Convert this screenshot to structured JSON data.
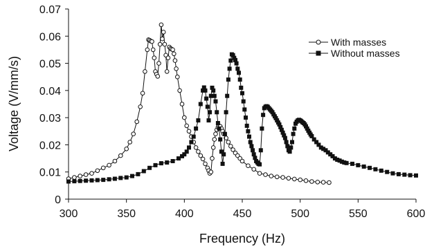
{
  "chart_data": {
    "type": "line",
    "title": "",
    "xlabel": "Frequency (Hz)",
    "ylabel": "Voltage (V/mm/s)",
    "xlim": [
      300,
      600
    ],
    "ylim": [
      0,
      0.07
    ],
    "x_ticks": [
      "300",
      "350",
      "400",
      "450",
      "500",
      "550",
      "600"
    ],
    "y_ticks": [
      "0",
      "0.01",
      "0.02",
      "0.03",
      "0.04",
      "0.05",
      "0.06",
      "0.07"
    ],
    "grid": false,
    "legend_position": "top-right",
    "series": [
      {
        "name": "With masses",
        "marker": "open-circle",
        "color": "#111111",
        "x": [
          300,
          305,
          310,
          315,
          320,
          325,
          330,
          335,
          340,
          345,
          350,
          353,
          356,
          359,
          362,
          364,
          366,
          368,
          369,
          370,
          371,
          372,
          373,
          374,
          375,
          376,
          377,
          378,
          379,
          380,
          381,
          382,
          383,
          384,
          385,
          386,
          387,
          388,
          389,
          390,
          391,
          392,
          393,
          394,
          396,
          398,
          400,
          402,
          404,
          406,
          408,
          410,
          412,
          414,
          416,
          418,
          420,
          421,
          422,
          423,
          424,
          425,
          426,
          427,
          428,
          429,
          430,
          431,
          432,
          433,
          434,
          436,
          438,
          440,
          442,
          444,
          446,
          448,
          450,
          455,
          460,
          465,
          470,
          475,
          480,
          485,
          490,
          495,
          500,
          505,
          510,
          515,
          520,
          525
        ],
        "y": [
          0.0075,
          0.008,
          0.0085,
          0.009,
          0.0095,
          0.0105,
          0.0115,
          0.0125,
          0.014,
          0.016,
          0.0185,
          0.021,
          0.024,
          0.0285,
          0.034,
          0.039,
          0.047,
          0.055,
          0.0587,
          0.0585,
          0.0582,
          0.058,
          0.055,
          0.052,
          0.047,
          0.046,
          0.0452,
          0.05,
          0.057,
          0.0642,
          0.059,
          0.0615,
          0.057,
          0.053,
          0.047,
          0.052,
          0.056,
          0.0555,
          0.0552,
          0.055,
          0.0535,
          0.051,
          0.048,
          0.045,
          0.04,
          0.035,
          0.03,
          0.027,
          0.025,
          0.023,
          0.021,
          0.019,
          0.0175,
          0.016,
          0.0148,
          0.013,
          0.0115,
          0.0105,
          0.0095,
          0.01,
          0.015,
          0.019,
          0.022,
          0.024,
          0.0255,
          0.0265,
          0.027,
          0.0268,
          0.026,
          0.025,
          0.024,
          0.0225,
          0.021,
          0.0195,
          0.0182,
          0.017,
          0.016,
          0.015,
          0.014,
          0.0123,
          0.011,
          0.0095,
          0.009,
          0.0085,
          0.0082,
          0.008,
          0.0077,
          0.0074,
          0.0071,
          0.0068,
          0.0065,
          0.0063,
          0.0062,
          0.0061
        ]
      },
      {
        "name": "Without masses",
        "marker": "filled-square",
        "color": "#111111",
        "x": [
          300,
          305,
          310,
          315,
          320,
          325,
          330,
          335,
          340,
          345,
          350,
          355,
          360,
          365,
          370,
          375,
          380,
          385,
          390,
          395,
          398,
          400,
          402,
          404,
          406,
          408,
          410,
          412,
          414,
          416,
          417,
          418,
          419,
          420,
          421,
          422,
          423,
          424,
          425,
          426,
          427,
          428,
          429,
          430,
          431,
          432,
          433,
          434,
          435,
          436,
          437,
          438,
          439,
          440,
          441,
          442,
          443,
          444,
          445,
          446,
          447,
          448,
          449,
          450,
          451,
          452,
          453,
          454,
          455,
          456,
          457,
          458,
          459,
          460,
          461,
          462,
          463,
          464,
          465,
          466,
          467,
          468,
          469,
          470,
          471,
          472,
          473,
          474,
          475,
          476,
          477,
          478,
          479,
          480,
          481,
          482,
          483,
          484,
          485,
          486,
          487,
          488,
          489,
          490,
          491,
          492,
          493,
          494,
          495,
          496,
          497,
          498,
          499,
          500,
          501,
          502,
          503,
          504,
          505,
          506,
          507,
          508,
          509,
          510,
          512,
          514,
          516,
          518,
          520,
          522,
          524,
          526,
          528,
          530,
          532,
          534,
          536,
          538,
          540,
          545,
          550,
          555,
          560,
          565,
          570,
          575,
          580,
          585,
          590,
          595,
          600
        ],
        "y": [
          0.0065,
          0.0066,
          0.0067,
          0.0068,
          0.0069,
          0.007,
          0.0071,
          0.0073,
          0.0075,
          0.0078,
          0.008,
          0.0085,
          0.0092,
          0.0103,
          0.0115,
          0.0125,
          0.0132,
          0.0135,
          0.014,
          0.015,
          0.0158,
          0.0165,
          0.0175,
          0.019,
          0.021,
          0.023,
          0.026,
          0.029,
          0.035,
          0.04,
          0.0411,
          0.04,
          0.037,
          0.034,
          0.029,
          0.032,
          0.038,
          0.041,
          0.04,
          0.038,
          0.036,
          0.032,
          0.028,
          0.026,
          0.022,
          0.0175,
          0.013,
          0.0165,
          0.024,
          0.032,
          0.038,
          0.044,
          0.048,
          0.051,
          0.0533,
          0.053,
          0.052,
          0.0512,
          0.05,
          0.048,
          0.0465,
          0.044,
          0.041,
          0.039,
          0.036,
          0.033,
          0.03,
          0.027,
          0.025,
          0.023,
          0.021,
          0.0195,
          0.018,
          0.0165,
          0.0152,
          0.014,
          0.0135,
          0.013,
          0.0128,
          0.018,
          0.026,
          0.031,
          0.0335,
          0.034,
          0.0342,
          0.034,
          0.0335,
          0.033,
          0.0325,
          0.032,
          0.0312,
          0.0305,
          0.0298,
          0.029,
          0.0282,
          0.0275,
          0.0265,
          0.0255,
          0.0245,
          0.0235,
          0.0225,
          0.021,
          0.0195,
          0.018,
          0.0175,
          0.019,
          0.021,
          0.024,
          0.026,
          0.0278,
          0.0285,
          0.029,
          0.0292,
          0.029,
          0.0287,
          0.0283,
          0.028,
          0.0275,
          0.0268,
          0.026,
          0.0252,
          0.0245,
          0.0238,
          0.0232,
          0.022,
          0.021,
          0.02,
          0.019,
          0.0185,
          0.018,
          0.0172,
          0.0165,
          0.0158,
          0.015,
          0.0145,
          0.0142,
          0.0138,
          0.0135,
          0.0133,
          0.013,
          0.0125,
          0.012,
          0.0115,
          0.011,
          0.0105,
          0.01,
          0.0095,
          0.0092,
          0.009,
          0.0088,
          0.0087
        ]
      }
    ]
  }
}
